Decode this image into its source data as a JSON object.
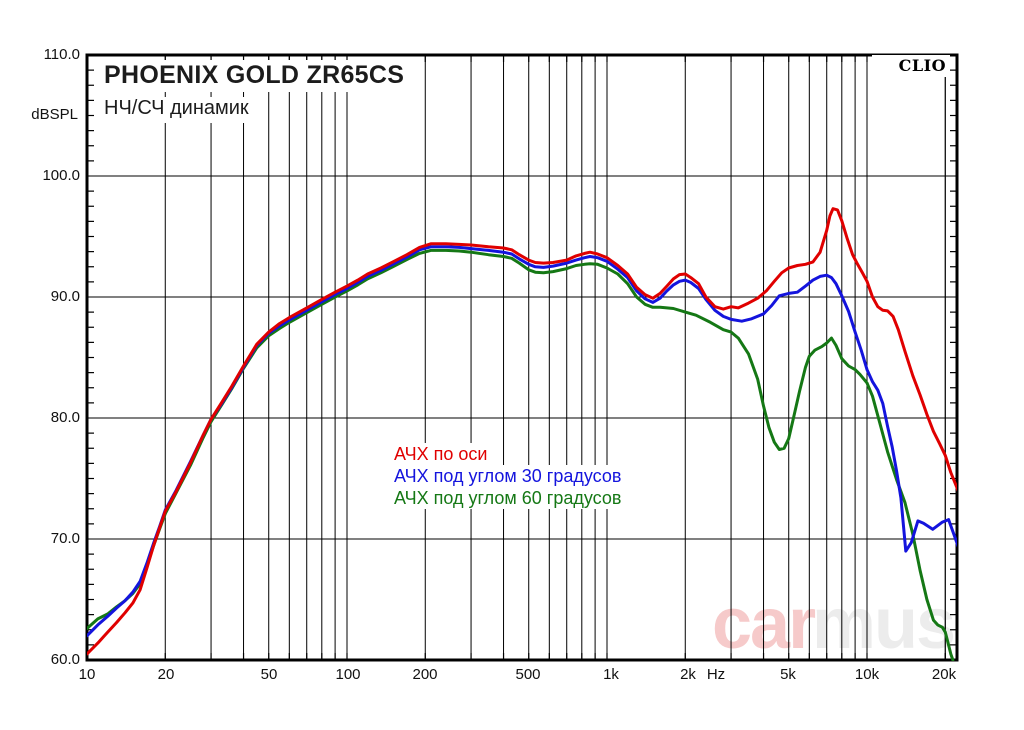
{
  "header": {
    "title": "PHOENIX GOLD ZR65CS",
    "subtitle": "НЧ/СЧ динамик",
    "logo": "CLIO"
  },
  "axis_y": {
    "unit": "dBSPL",
    "labels": [
      "110.0",
      "100.0",
      "90.0",
      "80.0",
      "70.0",
      "60.0"
    ]
  },
  "axis_x": {
    "unit": "Hz",
    "labels": [
      "10",
      "20",
      "50",
      "100",
      "200",
      "500",
      "1k",
      "2k",
      "5k",
      "10k",
      "20k"
    ]
  },
  "legend": {
    "items": [
      {
        "label": "АЧХ по оси",
        "color": "#e00000"
      },
      {
        "label": "АЧХ под углом 30 градусов",
        "color": "#1414dd"
      },
      {
        "label": "АЧХ под углом 60 градусов",
        "color": "#157815"
      }
    ]
  },
  "watermark": {
    "part1": "car",
    "part2": "mus",
    "color1": "#f6caca",
    "color2": "#ececec"
  },
  "chart_data": {
    "type": "line",
    "title": "PHOENIX GOLD ZR65CS — НЧ/СЧ динамик",
    "xlabel": "Hz",
    "ylabel": "dBSPL",
    "x_scale": "log",
    "x_range": [
      10,
      22400
    ],
    "y_range": [
      60,
      110
    ],
    "y_major_step": 10,
    "y_minor_step": 1.25,
    "grid": "log-paper",
    "legend_position": "center",
    "series": [
      {
        "name": "АЧХ по оси",
        "color": "#e00000",
        "points": [
          [
            10,
            60.5
          ],
          [
            11,
            61.4
          ],
          [
            12,
            62.3
          ],
          [
            13,
            63.1
          ],
          [
            14,
            63.9
          ],
          [
            15,
            64.7
          ],
          [
            16,
            65.8
          ],
          [
            17,
            67.6
          ],
          [
            18,
            69.4
          ],
          [
            19,
            70.9
          ],
          [
            20,
            72.3
          ],
          [
            22,
            73.9
          ],
          [
            25,
            76.3
          ],
          [
            28,
            78.6
          ],
          [
            30,
            79.9
          ],
          [
            33,
            81.3
          ],
          [
            36,
            82.6
          ],
          [
            40,
            84.3
          ],
          [
            45,
            86.1
          ],
          [
            50,
            87.1
          ],
          [
            55,
            87.8
          ],
          [
            60,
            88.3
          ],
          [
            70,
            89.1
          ],
          [
            80,
            89.8
          ],
          [
            90,
            90.4
          ],
          [
            100,
            90.9
          ],
          [
            110,
            91.4
          ],
          [
            120,
            91.9
          ],
          [
            135,
            92.4
          ],
          [
            150,
            92.9
          ],
          [
            170,
            93.5
          ],
          [
            190,
            94.1
          ],
          [
            210,
            94.4
          ],
          [
            240,
            94.4
          ],
          [
            270,
            94.35
          ],
          [
            300,
            94.3
          ],
          [
            350,
            94.15
          ],
          [
            400,
            94.05
          ],
          [
            430,
            93.9
          ],
          [
            460,
            93.5
          ],
          [
            500,
            93.05
          ],
          [
            530,
            92.85
          ],
          [
            570,
            92.8
          ],
          [
            620,
            92.85
          ],
          [
            700,
            93.05
          ],
          [
            760,
            93.4
          ],
          [
            820,
            93.6
          ],
          [
            860,
            93.7
          ],
          [
            920,
            93.55
          ],
          [
            1000,
            93.25
          ],
          [
            1100,
            92.6
          ],
          [
            1200,
            91.9
          ],
          [
            1300,
            90.8
          ],
          [
            1400,
            90.2
          ],
          [
            1500,
            89.9
          ],
          [
            1600,
            90.3
          ],
          [
            1700,
            90.9
          ],
          [
            1800,
            91.5
          ],
          [
            1900,
            91.85
          ],
          [
            2000,
            91.9
          ],
          [
            2100,
            91.6
          ],
          [
            2250,
            91.1
          ],
          [
            2400,
            90.0
          ],
          [
            2600,
            89.2
          ],
          [
            2800,
            89.0
          ],
          [
            3000,
            89.2
          ],
          [
            3200,
            89.1
          ],
          [
            3500,
            89.5
          ],
          [
            3800,
            89.9
          ],
          [
            4100,
            90.5
          ],
          [
            4400,
            91.3
          ],
          [
            4700,
            92.0
          ],
          [
            5000,
            92.4
          ],
          [
            5400,
            92.6
          ],
          [
            5800,
            92.7
          ],
          [
            6200,
            92.9
          ],
          [
            6600,
            93.7
          ],
          [
            7000,
            95.5
          ],
          [
            7200,
            96.7
          ],
          [
            7400,
            97.3
          ],
          [
            7700,
            97.2
          ],
          [
            8000,
            96.3
          ],
          [
            8400,
            94.8
          ],
          [
            8800,
            93.5
          ],
          [
            9200,
            92.7
          ],
          [
            9600,
            92.0
          ],
          [
            10000,
            91.3
          ],
          [
            10500,
            90.0
          ],
          [
            11000,
            89.2
          ],
          [
            11500,
            88.9
          ],
          [
            12000,
            88.85
          ],
          [
            12600,
            88.4
          ],
          [
            13200,
            87.3
          ],
          [
            14000,
            85.5
          ],
          [
            15000,
            83.5
          ],
          [
            16000,
            81.9
          ],
          [
            17000,
            80.3
          ],
          [
            18000,
            78.9
          ],
          [
            19000,
            77.9
          ],
          [
            20000,
            76.9
          ],
          [
            21000,
            75.5
          ],
          [
            22400,
            74.0
          ]
        ]
      },
      {
        "name": "АЧХ под углом 30 градусов",
        "color": "#1414dd",
        "points": [
          [
            10,
            62.0
          ],
          [
            11,
            62.9
          ],
          [
            12,
            63.6
          ],
          [
            13,
            64.3
          ],
          [
            14,
            64.9
          ],
          [
            15,
            65.6
          ],
          [
            16,
            66.5
          ],
          [
            17,
            68.0
          ],
          [
            18,
            69.6
          ],
          [
            19,
            71.0
          ],
          [
            20,
            72.4
          ],
          [
            22,
            74.0
          ],
          [
            25,
            76.4
          ],
          [
            28,
            78.6
          ],
          [
            30,
            79.9
          ],
          [
            33,
            81.2
          ],
          [
            36,
            82.5
          ],
          [
            40,
            84.2
          ],
          [
            45,
            86.0
          ],
          [
            50,
            87.0
          ],
          [
            55,
            87.6
          ],
          [
            60,
            88.1
          ],
          [
            70,
            88.9
          ],
          [
            80,
            89.6
          ],
          [
            90,
            90.2
          ],
          [
            100,
            90.7
          ],
          [
            110,
            91.2
          ],
          [
            120,
            91.7
          ],
          [
            135,
            92.2
          ],
          [
            150,
            92.7
          ],
          [
            170,
            93.3
          ],
          [
            190,
            93.9
          ],
          [
            210,
            94.15
          ],
          [
            240,
            94.15
          ],
          [
            270,
            94.1
          ],
          [
            300,
            94.0
          ],
          [
            350,
            93.85
          ],
          [
            400,
            93.7
          ],
          [
            430,
            93.55
          ],
          [
            460,
            93.15
          ],
          [
            500,
            92.7
          ],
          [
            530,
            92.5
          ],
          [
            570,
            92.45
          ],
          [
            620,
            92.55
          ],
          [
            700,
            92.8
          ],
          [
            760,
            93.05
          ],
          [
            820,
            93.25
          ],
          [
            860,
            93.35
          ],
          [
            920,
            93.25
          ],
          [
            1000,
            92.95
          ],
          [
            1100,
            92.3
          ],
          [
            1200,
            91.6
          ],
          [
            1300,
            90.5
          ],
          [
            1400,
            89.85
          ],
          [
            1500,
            89.55
          ],
          [
            1600,
            89.9
          ],
          [
            1700,
            90.5
          ],
          [
            1800,
            91.0
          ],
          [
            1900,
            91.3
          ],
          [
            2000,
            91.4
          ],
          [
            2100,
            91.2
          ],
          [
            2250,
            90.7
          ],
          [
            2400,
            89.8
          ],
          [
            2600,
            88.9
          ],
          [
            2800,
            88.4
          ],
          [
            3000,
            88.15
          ],
          [
            3300,
            88.0
          ],
          [
            3600,
            88.2
          ],
          [
            4000,
            88.6
          ],
          [
            4300,
            89.3
          ],
          [
            4600,
            90.1
          ],
          [
            5000,
            90.3
          ],
          [
            5400,
            90.4
          ],
          [
            5800,
            90.9
          ],
          [
            6200,
            91.4
          ],
          [
            6600,
            91.7
          ],
          [
            7000,
            91.8
          ],
          [
            7300,
            91.6
          ],
          [
            7600,
            91.1
          ],
          [
            8000,
            90.1
          ],
          [
            8500,
            88.8
          ],
          [
            9000,
            87.1
          ],
          [
            9500,
            85.6
          ],
          [
            10000,
            84.0
          ],
          [
            10500,
            83.0
          ],
          [
            11000,
            82.3
          ],
          [
            11500,
            81.2
          ],
          [
            12000,
            79.3
          ],
          [
            12500,
            77.6
          ],
          [
            13000,
            75.6
          ],
          [
            13500,
            73.4
          ],
          [
            14100,
            69.0
          ],
          [
            14800,
            69.7
          ],
          [
            15700,
            71.5
          ],
          [
            16500,
            71.3
          ],
          [
            17900,
            70.8
          ],
          [
            19500,
            71.4
          ],
          [
            20600,
            71.6
          ],
          [
            21500,
            70.5
          ],
          [
            22400,
            69.4
          ]
        ]
      },
      {
        "name": "АЧХ под углом 60 градусов",
        "color": "#157815",
        "points": [
          [
            10,
            62.6
          ],
          [
            11,
            63.4
          ],
          [
            12,
            63.8
          ],
          [
            13,
            64.4
          ],
          [
            14,
            64.9
          ],
          [
            15,
            65.5
          ],
          [
            16,
            66.3
          ],
          [
            17,
            67.8
          ],
          [
            18,
            69.4
          ],
          [
            19,
            70.8
          ],
          [
            20,
            72.1
          ],
          [
            22,
            73.8
          ],
          [
            25,
            76.1
          ],
          [
            28,
            78.4
          ],
          [
            30,
            79.7
          ],
          [
            33,
            81.1
          ],
          [
            36,
            82.4
          ],
          [
            40,
            84.1
          ],
          [
            45,
            85.8
          ],
          [
            50,
            86.8
          ],
          [
            55,
            87.4
          ],
          [
            60,
            87.9
          ],
          [
            70,
            88.7
          ],
          [
            80,
            89.4
          ],
          [
            90,
            90.0
          ],
          [
            100,
            90.5
          ],
          [
            110,
            91.0
          ],
          [
            120,
            91.5
          ],
          [
            135,
            92.0
          ],
          [
            150,
            92.5
          ],
          [
            170,
            93.1
          ],
          [
            190,
            93.6
          ],
          [
            210,
            93.85
          ],
          [
            240,
            93.85
          ],
          [
            270,
            93.8
          ],
          [
            300,
            93.7
          ],
          [
            350,
            93.5
          ],
          [
            400,
            93.35
          ],
          [
            430,
            93.2
          ],
          [
            460,
            92.8
          ],
          [
            500,
            92.25
          ],
          [
            530,
            92.05
          ],
          [
            570,
            92.0
          ],
          [
            620,
            92.1
          ],
          [
            700,
            92.35
          ],
          [
            760,
            92.6
          ],
          [
            820,
            92.7
          ],
          [
            860,
            92.75
          ],
          [
            920,
            92.7
          ],
          [
            1000,
            92.4
          ],
          [
            1100,
            91.9
          ],
          [
            1200,
            91.1
          ],
          [
            1300,
            90.0
          ],
          [
            1400,
            89.4
          ],
          [
            1500,
            89.15
          ],
          [
            1600,
            89.15
          ],
          [
            1700,
            89.1
          ],
          [
            1800,
            89.05
          ],
          [
            2000,
            88.75
          ],
          [
            2200,
            88.5
          ],
          [
            2500,
            87.9
          ],
          [
            2800,
            87.3
          ],
          [
            3000,
            87.1
          ],
          [
            3200,
            86.6
          ],
          [
            3500,
            85.3
          ],
          [
            3800,
            83.2
          ],
          [
            4000,
            81.0
          ],
          [
            4200,
            79.2
          ],
          [
            4400,
            78.0
          ],
          [
            4600,
            77.4
          ],
          [
            4800,
            77.5
          ],
          [
            5000,
            78.3
          ],
          [
            5200,
            79.9
          ],
          [
            5500,
            82.2
          ],
          [
            5800,
            84.2
          ],
          [
            6000,
            85.1
          ],
          [
            6300,
            85.6
          ],
          [
            6700,
            85.9
          ],
          [
            7000,
            86.2
          ],
          [
            7300,
            86.6
          ],
          [
            7600,
            86.0
          ],
          [
            8000,
            84.9
          ],
          [
            8500,
            84.3
          ],
          [
            9000,
            84.0
          ],
          [
            9400,
            83.6
          ],
          [
            10000,
            82.9
          ],
          [
            10500,
            81.8
          ],
          [
            11000,
            80.2
          ],
          [
            12000,
            77.2
          ],
          [
            13000,
            74.9
          ],
          [
            14000,
            73.0
          ],
          [
            15000,
            70.4
          ],
          [
            16000,
            67.4
          ],
          [
            17000,
            65.0
          ],
          [
            18000,
            63.3
          ],
          [
            18700,
            62.9
          ],
          [
            19500,
            62.7
          ],
          [
            20000,
            62.3
          ],
          [
            20500,
            61.4
          ],
          [
            21000,
            60.5
          ],
          [
            21400,
            60.0
          ]
        ]
      }
    ]
  }
}
